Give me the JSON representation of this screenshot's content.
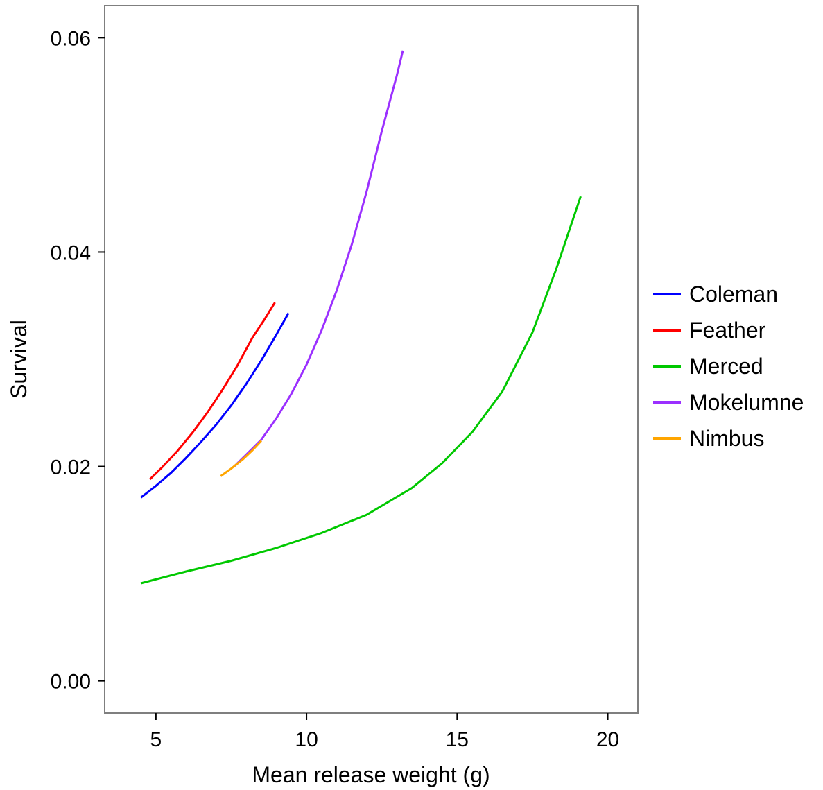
{
  "chart_data": {
    "type": "line",
    "xlabel": "Mean release weight (g)",
    "ylabel": "Survival",
    "xlim": [
      3.3,
      21.0
    ],
    "ylim": [
      -0.003,
      0.063
    ],
    "xticks": [
      5,
      10,
      15,
      20
    ],
    "yticks": [
      0.0,
      0.02,
      0.04,
      0.06
    ],
    "xtick_labels": [
      "5",
      "10",
      "15",
      "20"
    ],
    "ytick_labels": [
      "0.00",
      "0.02",
      "0.04",
      "0.06"
    ],
    "grid": false,
    "legend_position": "right",
    "series": [
      {
        "name": "Coleman",
        "color": "#0000ff",
        "x": [
          4.5,
          5.0,
          5.5,
          6.0,
          6.5,
          7.0,
          7.5,
          8.0,
          8.5,
          9.0,
          9.4
        ],
        "y": [
          0.0171,
          0.0182,
          0.0194,
          0.0208,
          0.0223,
          0.0239,
          0.0257,
          0.0277,
          0.0299,
          0.0323,
          0.0343
        ]
      },
      {
        "name": "Feather",
        "color": "#ff0000",
        "x": [
          4.8,
          5.2,
          5.7,
          6.2,
          6.7,
          7.2,
          7.7,
          8.2,
          8.6,
          8.95
        ],
        "y": [
          0.0188,
          0.0199,
          0.0214,
          0.0231,
          0.025,
          0.0271,
          0.0294,
          0.032,
          0.0337,
          0.0353
        ]
      },
      {
        "name": "Merced",
        "color": "#00c800",
        "x": [
          4.5,
          6.0,
          7.5,
          9.0,
          10.5,
          12.0,
          13.5,
          14.5,
          15.5,
          16.5,
          17.5,
          18.3,
          19.1
        ],
        "y": [
          0.0091,
          0.0102,
          0.0112,
          0.0124,
          0.0138,
          0.0155,
          0.018,
          0.0203,
          0.0232,
          0.027,
          0.0325,
          0.0385,
          0.0452
        ]
      },
      {
        "name": "Mokelumne",
        "color": "#9b30ff",
        "x": [
          7.6,
          8.0,
          8.5,
          9.0,
          9.5,
          10.0,
          10.5,
          11.0,
          11.5,
          12.0,
          12.5,
          13.0,
          13.2
        ],
        "y": [
          0.02,
          0.0211,
          0.0225,
          0.0245,
          0.0268,
          0.0295,
          0.0327,
          0.0364,
          0.0407,
          0.0457,
          0.0513,
          0.0565,
          0.0588
        ]
      },
      {
        "name": "Nimbus",
        "color": "#ffa500",
        "x": [
          7.15,
          7.5,
          7.9,
          8.2,
          8.5
        ],
        "y": [
          0.0191,
          0.0198,
          0.0207,
          0.0215,
          0.0224
        ]
      }
    ]
  }
}
